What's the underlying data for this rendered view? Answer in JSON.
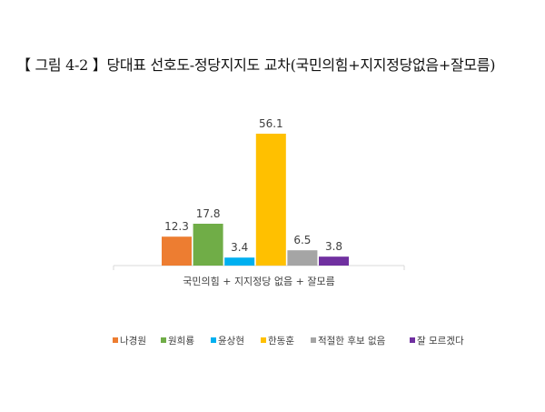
{
  "chart_data": {
    "type": "bar",
    "title": "【 그림 4-2 】당대표 선호도-정당지지도 교차(국민의힘+지지정당없음+잘모름)",
    "categories": [
      "국민의힘 + 지지정당 없음 + 잘모름"
    ],
    "series": [
      {
        "name": "나경원",
        "values": [
          12.3
        ],
        "color": "#ED7D31"
      },
      {
        "name": "원희룡",
        "values": [
          17.8
        ],
        "color": "#70AD47"
      },
      {
        "name": "윤상현",
        "values": [
          3.4
        ],
        "color": "#00B0F0"
      },
      {
        "name": "한동훈",
        "values": [
          56.1
        ],
        "color": "#FFC000"
      },
      {
        "name": "적절한 후보 없음",
        "values": [
          6.5
        ],
        "color": "#A5A5A5"
      },
      {
        "name": "잘 모르겠다",
        "values": [
          3.8
        ],
        "color": "#7030A0"
      }
    ],
    "ylim": [
      0,
      60
    ],
    "grid": false,
    "legend": "bottom"
  }
}
